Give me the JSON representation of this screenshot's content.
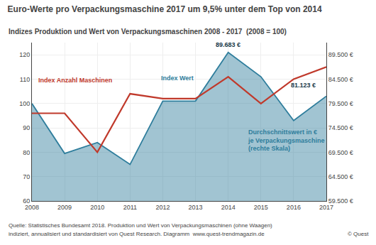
{
  "chart_data": {
    "type": "line",
    "title": "Euro-Werte pro Verpackungsmaschine 2017 um 9,5% unter dem Top von 2014",
    "subtitle": "Indizes Produktion und Wert von Verpackungsmaschinen 2008 - 2017  (2008 = 100)",
    "x": [
      2008,
      2009,
      2010,
      2011,
      2012,
      2013,
      2014,
      2015,
      2016,
      2017
    ],
    "xlim": [
      2008,
      2017
    ],
    "xticks": [
      2008,
      2009,
      2010,
      2011,
      2012,
      2013,
      2014,
      2015,
      2016,
      2017
    ],
    "ylim": [
      60,
      125
    ],
    "yticks": [
      60,
      70,
      80,
      90,
      100,
      110,
      120
    ],
    "y2lim": [
      59500,
      92000
    ],
    "y2ticks": [
      {
        "value": 59500,
        "label": "59.500 €"
      },
      {
        "value": 64500,
        "label": "64.500 €"
      },
      {
        "value": 69500,
        "label": "69.500 €"
      },
      {
        "value": 74500,
        "label": "74.500 €"
      },
      {
        "value": 79500,
        "label": "79.500 €"
      },
      {
        "value": 84500,
        "label": "84.500 €"
      },
      {
        "value": 89500,
        "label": "89.500 €"
      }
    ],
    "grid": true,
    "series": [
      {
        "type": "area",
        "color": "#2e7d9c",
        "values": [
          100,
          79.5,
          84,
          75,
          101,
          101,
          121,
          111,
          93,
          103
        ]
      },
      {
        "type": "line",
        "color": "#c0392b",
        "values": [
          96,
          96,
          80,
          104,
          102,
          102,
          111,
          100,
          110,
          115
        ]
      }
    ],
    "annotations": [
      {
        "text": "Index Anzahl Maschinen",
        "x": 2008.15,
        "y": 107.5,
        "color": "#c0392b"
      },
      {
        "text": "Index Wert",
        "x": 2011.9,
        "y": 108.5,
        "color": "#2e7d9c"
      },
      {
        "text": "Durchschnittswert in €\nje Verpackungsmaschine\n(rechte Skala)",
        "x": 2014.55,
        "y": 79.5,
        "color": "#2e7d9c"
      },
      {
        "text": "89.683 €",
        "x": 2014.0,
        "y": 122.2,
        "color": "#1a3a4a"
      },
      {
        "text": "81.123 €",
        "x": 2016.72,
        "y": 105.5,
        "color": "#1a3a4a"
      }
    ],
    "footnotes": [
      "Quelle: Statistisches Bundesamt 2018. Produktion und Wert von Verpackungsmaschinen (ohne Waagen)",
      "indiziert, annualisiert und standardisiert von Quest Research. Diagramm  www.quest-trendmagazin.de"
    ],
    "copyright": "© Quest"
  }
}
